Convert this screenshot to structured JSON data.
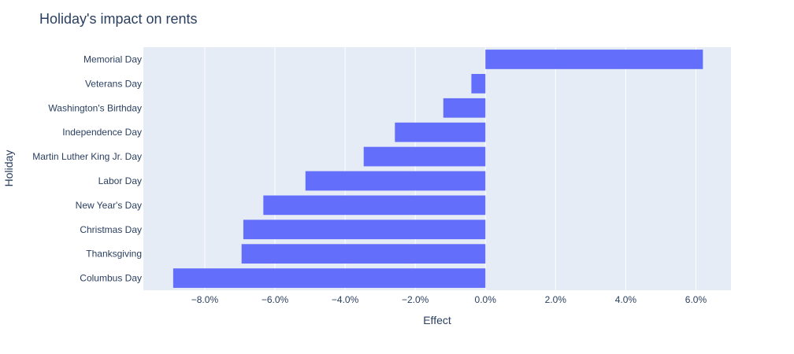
{
  "chart_data": {
    "type": "bar",
    "orientation": "horizontal",
    "title": "Holiday's impact on rents",
    "xlabel": "Effect",
    "ylabel": "Holiday",
    "categories": [
      "Columbus Day",
      "Thanksgiving",
      "Christmas Day",
      "New Year's Day",
      "Labor Day",
      "Martin Luther King Jr. Day",
      "Independence Day",
      "Washington's Birthday",
      "Veterans Day",
      "Memorial Day"
    ],
    "values": [
      -8.9,
      -6.95,
      -6.9,
      -6.33,
      -5.13,
      -3.47,
      -2.58,
      -1.2,
      -0.4,
      6.2
    ],
    "xlim": [
      -9.75,
      7.0
    ],
    "x_ticks": [
      -8,
      -6,
      -4,
      -2,
      0,
      2,
      4,
      6
    ],
    "x_tick_labels": [
      "−8.0%",
      "−6.0%",
      "−4.0%",
      "−2.0%",
      "0.0%",
      "2.0%",
      "4.0%",
      "6.0%"
    ],
    "grid": true,
    "colors": {
      "bar": "#636efa",
      "plot_background": "#e5ecf6",
      "grid": "#ffffff",
      "text": "#2a3f5f"
    }
  }
}
